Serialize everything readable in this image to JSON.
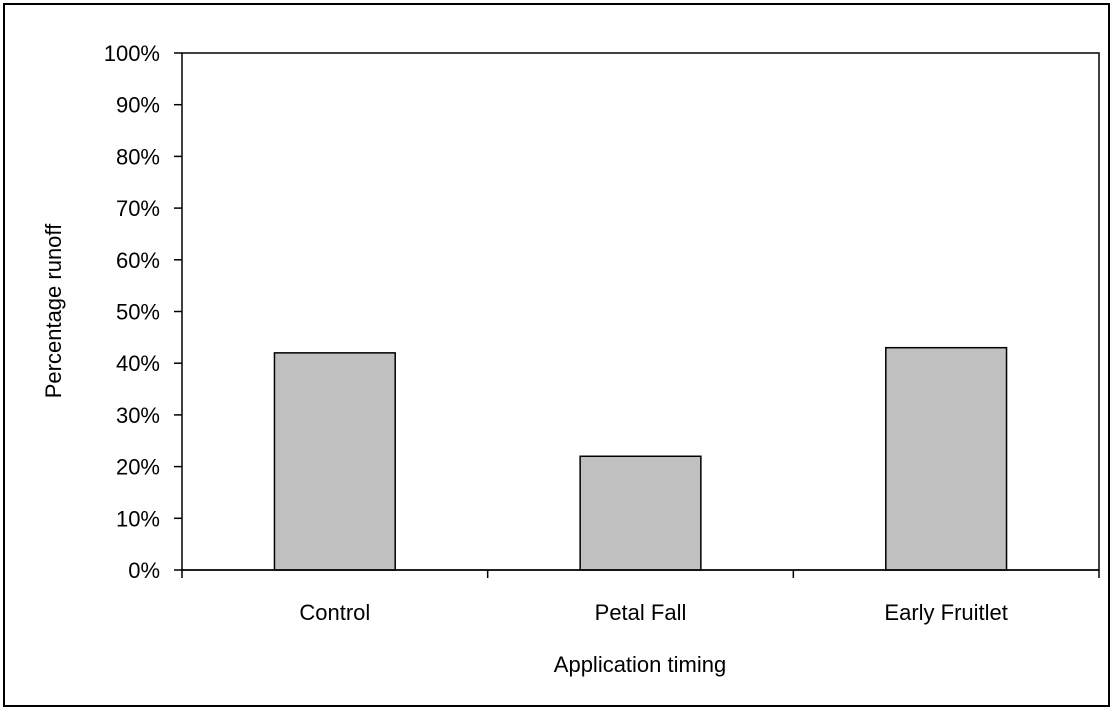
{
  "chart_data": {
    "type": "bar",
    "title": "",
    "xlabel": "Application timing",
    "ylabel": "Percentage runoff",
    "categories": [
      "Control",
      "Petal Fall",
      "Early Fruitlet"
    ],
    "values": [
      0.42,
      0.22,
      0.43
    ],
    "ylim": [
      0,
      1
    ],
    "yticks": [
      0,
      0.1,
      0.2,
      0.3,
      0.4,
      0.5,
      0.6,
      0.7,
      0.8,
      0.9,
      1.0
    ],
    "ytick_labels": [
      "0%",
      "10%",
      "20%",
      "30%",
      "40%",
      "50%",
      "60%",
      "70%",
      "80%",
      "90%",
      "100%"
    ],
    "grid": false,
    "legend": "none",
    "bar_color": "#c0c0c0",
    "bar_edge_color": "#000000"
  }
}
